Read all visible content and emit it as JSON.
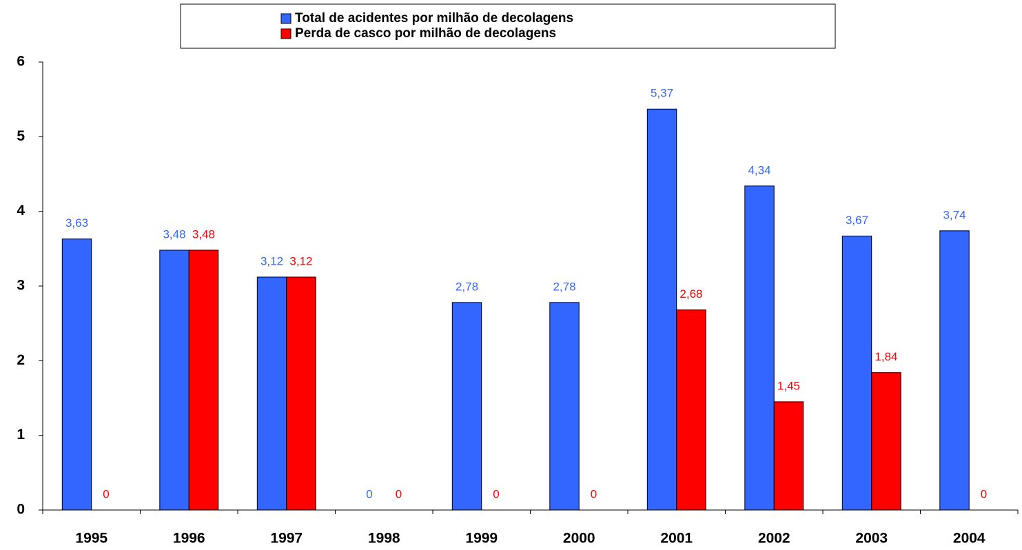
{
  "chart_data": {
    "type": "bar",
    "categories": [
      "1995",
      "1996",
      "1997",
      "1998",
      "1999",
      "2000",
      "2001",
      "2002",
      "2003",
      "2004"
    ],
    "series": [
      {
        "name": "Total de acidentes por milhão de decolagens",
        "color": "#3366ff",
        "values": [
          3.63,
          3.48,
          3.12,
          0,
          2.78,
          2.78,
          5.37,
          4.34,
          3.67,
          3.74
        ],
        "value_labels": [
          "3,63",
          "3,48",
          "3,12",
          "0",
          "2,78",
          "2,78",
          "5,37",
          "4,34",
          "3,67",
          "3,74"
        ]
      },
      {
        "name": "Perda de casco por milhão de decolagens",
        "color": "#ff0000",
        "values": [
          0,
          3.48,
          3.12,
          0,
          0,
          0,
          2.68,
          1.45,
          1.84,
          0
        ],
        "value_labels": [
          "0",
          "3,48",
          "3,12",
          "0",
          "0",
          "0",
          "2,68",
          "1,45",
          "1,84",
          "0"
        ]
      }
    ],
    "ylim": [
      0,
      6
    ],
    "yticks": [
      0,
      1,
      2,
      3,
      4,
      5,
      6
    ],
    "grid": false,
    "legend": "top"
  }
}
